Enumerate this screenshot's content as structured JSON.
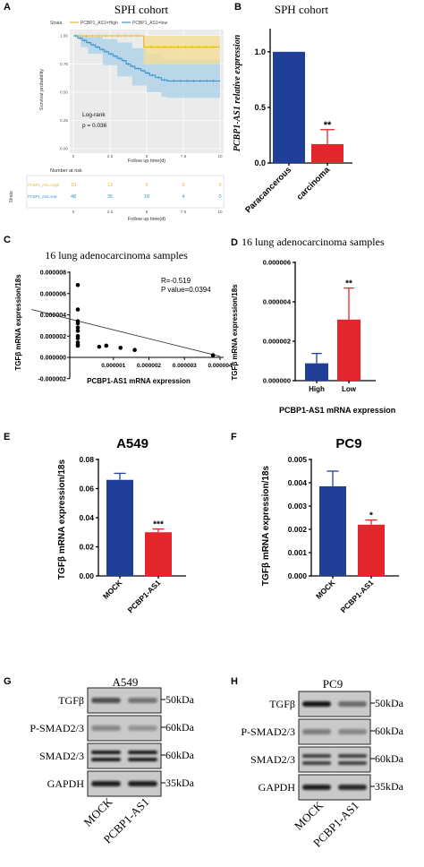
{
  "panels": {
    "A": {
      "letter": "A",
      "title": "SPH cohort",
      "legend_label": "Strata",
      "legend_high": "PCBP1_AS1=High",
      "legend_low": "PCBP1_AS1=low",
      "ylabel": "Survival probability",
      "xlabel": "Follow up time(d)",
      "logrank": "Log-rank",
      "pvalue": "p = 0.036",
      "risk_title": "Number at risk",
      "risk_xlabel": "Follow up time(d)",
      "risk_strata_label": "Strata",
      "risk_row_high": "PCBP1_AS1=High",
      "risk_row_low": "PCBP1_AS1=low",
      "colors": {
        "high": "#e8b42c",
        "low": "#3e92cc",
        "high_band": "#f5dc91",
        "low_band": "#a9d0ea"
      }
    },
    "B": {
      "letter": "B",
      "title": "SPH cohort",
      "ylabel": "PCBP1-AS1 relative expression",
      "sig": "**",
      "colors": {
        "bar1": "#1f3f99",
        "bar2": "#e3262b"
      }
    },
    "C": {
      "letter": "C",
      "title": "16 lung adenocarcinoma samples",
      "ylabel": "TGFβ mRNA expression/18s",
      "xlabel": "PCBP1-AS1 mRNA expression",
      "r_text": "R=-0.519",
      "p_text": "P value=0.0394"
    },
    "D": {
      "letter": "D",
      "title": "16 lung adenocarcinoma samples",
      "ylabel": "TGFβ mRNA expression/18s",
      "xlabel": "PCBP1-AS1 mRNA expression",
      "sig": "**"
    },
    "E": {
      "letter": "E",
      "title": "A549",
      "ylabel": "TGFβ mRNA expression/18s",
      "sig": "***"
    },
    "F": {
      "letter": "F",
      "title": "PC9",
      "ylabel": "TGFβ mRNA expression/18s",
      "sig": "*"
    },
    "G": {
      "letter": "G",
      "title": "A549",
      "rows": [
        {
          "label": "TGFβ",
          "kda": "50kDa"
        },
        {
          "label": "P-SMAD2/3",
          "kda": "60kDa"
        },
        {
          "label": "SMAD2/3",
          "kda": "60kDa"
        },
        {
          "label": "GAPDH",
          "kda": "35kDa"
        }
      ],
      "lanes": [
        "MOCK",
        "PCBP1-AS1"
      ]
    },
    "H": {
      "letter": "H",
      "title": "PC9",
      "rows": [
        {
          "label": "TGFβ",
          "kda": "50kDa"
        },
        {
          "label": "P-SMAD2/3",
          "kda": "60kDa"
        },
        {
          "label": "SMAD2/3",
          "kda": "60kDa"
        },
        {
          "label": "GAPDH",
          "kda": "35kDa"
        }
      ],
      "lanes": [
        "MOCK",
        "PCBP1-AS1"
      ]
    }
  },
  "chart_data": [
    {
      "id": "A",
      "type": "line",
      "title": "SPH cohort",
      "xlabel": "Follow up time(d)",
      "ylabel": "Survival probability",
      "xlim": [
        0,
        10
      ],
      "ylim": [
        0,
        1
      ],
      "xticks": [
        0,
        2.5,
        5,
        7.5,
        10
      ],
      "xtick_labels": [
        "0",
        "2.5",
        "5",
        "7.5",
        "10"
      ],
      "yticks": [
        0,
        0.25,
        0.5,
        0.75,
        1
      ],
      "ytick_labels": [
        "0.00",
        "0.25",
        "0.50",
        "0.75",
        "1.00"
      ],
      "series": [
        {
          "name": "PCBP1_AS1=High",
          "steps": [
            [
              0,
              1.0
            ],
            [
              4.8,
              0.9
            ],
            [
              10,
              0.9
            ]
          ],
          "ci_low": [
            [
              0,
              1.0
            ],
            [
              4.8,
              0.75
            ],
            [
              10,
              0.75
            ]
          ],
          "ci_high": [
            [
              0,
              1.0
            ],
            [
              4.8,
              1.0
            ],
            [
              10,
              1.0
            ]
          ]
        },
        {
          "name": "PCBP1_AS1=low",
          "steps": [
            [
              0,
              1.0
            ],
            [
              0.3,
              0.98
            ],
            [
              0.6,
              0.96
            ],
            [
              0.9,
              0.94
            ],
            [
              1.2,
              0.92
            ],
            [
              1.5,
              0.9
            ],
            [
              1.8,
              0.88
            ],
            [
              2.1,
              0.86
            ],
            [
              2.4,
              0.84
            ],
            [
              2.7,
              0.82
            ],
            [
              3.0,
              0.8
            ],
            [
              3.3,
              0.78
            ],
            [
              3.6,
              0.75
            ],
            [
              3.9,
              0.73
            ],
            [
              4.2,
              0.71
            ],
            [
              4.6,
              0.69
            ],
            [
              4.9,
              0.67
            ],
            [
              5.2,
              0.65
            ],
            [
              5.6,
              0.63
            ],
            [
              6.0,
              0.61
            ],
            [
              6.4,
              0.6
            ],
            [
              10,
              0.6
            ]
          ],
          "ci_low": [
            [
              0,
              1.0
            ],
            [
              0.5,
              0.9
            ],
            [
              1,
              0.84
            ],
            [
              2,
              0.74
            ],
            [
              3,
              0.64
            ],
            [
              4,
              0.56
            ],
            [
              5,
              0.5
            ],
            [
              6,
              0.46
            ],
            [
              6.4,
              0.45
            ],
            [
              10,
              0.45
            ]
          ],
          "ci_high": [
            [
              0,
              1.0
            ],
            [
              1,
              0.99
            ],
            [
              2,
              0.97
            ],
            [
              3,
              0.94
            ],
            [
              4,
              0.89
            ],
            [
              5,
              0.84
            ],
            [
              6,
              0.8
            ],
            [
              6.4,
              0.79
            ],
            [
              10,
              0.79
            ]
          ]
        }
      ],
      "legend": "top"
    },
    {
      "id": "A-risk",
      "type": "table",
      "title": "Number at risk",
      "xlabel": "Follow up time(d)",
      "columns": [
        "0",
        "2.5",
        "5",
        "7.5",
        "10"
      ],
      "rows": [
        {
          "name": "PCBP1_AS1=High",
          "values": [
            "10",
            "12",
            "9",
            "9",
            "0"
          ]
        },
        {
          "name": "PCBP1_AS1=low",
          "values": [
            "48",
            "35",
            "18",
            "4",
            "0"
          ]
        }
      ]
    },
    {
      "id": "B",
      "type": "bar",
      "title": "SPH cohort",
      "categories": [
        "Paracancerous",
        "carcinoma"
      ],
      "values": [
        1.0,
        0.17
      ],
      "errors": [
        0,
        0.13
      ],
      "ylabel": "PCBP1-AS1 relative expression",
      "ylim": [
        0,
        1.2
      ],
      "yticks": [
        0,
        0.5,
        1.0
      ],
      "ytick_labels": [
        "0.0",
        "0.5",
        "1.0"
      ]
    },
    {
      "id": "C",
      "type": "scatter",
      "title": "16 lung adenocarcinoma samples",
      "xlabel": "PCBP1-AS1 mRNA expression",
      "ylabel": "TGFβ mRNA expression/18s",
      "xlim": [
        -1.5e-06,
        4e-06
      ],
      "ylim": [
        -2e-06,
        8e-06
      ],
      "xticks": [
        1e-06,
        2e-06,
        3e-06,
        4e-06
      ],
      "xtick_labels": [
        "0.000001",
        "0.000002",
        "0.000003",
        "0.000004"
      ],
      "yticks": [
        -2e-06,
        0,
        2e-06,
        4e-06,
        6e-06,
        8e-06
      ],
      "ytick_labels": [
        "-0.000002",
        "0.000000",
        "0.000002",
        "0.000004",
        "0.000006",
        "0.000008"
      ],
      "points": [
        [
          0,
          6.8e-06
        ],
        [
          0,
          4.5e-06
        ],
        [
          0,
          3.4e-06
        ],
        [
          0,
          3.2e-06
        ],
        [
          0,
          2.8e-06
        ],
        [
          0,
          2.5e-06
        ],
        [
          0,
          1.8e-06
        ],
        [
          0,
          1.4e-06
        ],
        [
          0,
          1.2e-06
        ],
        [
          0,
          1.1e-06
        ],
        [
          6e-07,
          1e-06
        ],
        [
          8e-07,
          1.1e-06
        ],
        [
          1.2e-06,
          9e-07
        ],
        [
          1.6e-06,
          7e-07
        ],
        [
          3.8e-06,
          2e-07
        ],
        [
          0,
          2e-06
        ]
      ],
      "fit": [
        [
          -1.3e-06,
          4.5e-06
        ],
        [
          4e-06,
          1e-07
        ]
      ]
    },
    {
      "id": "D",
      "type": "bar",
      "title": "16 lung adenocarcinoma samples",
      "categories": [
        "High",
        "Low"
      ],
      "values": [
        8.8e-07,
        3.1e-06
      ],
      "errors": [
        5e-07,
        1.6e-06
      ],
      "xlabel": "PCBP1-AS1 mRNA expression",
      "ylabel": "TGFβ mRNA expression/18s",
      "ylim": [
        0,
        6e-06
      ],
      "yticks": [
        0,
        2e-06,
        4e-06,
        6e-06
      ],
      "ytick_labels": [
        "0.000000",
        "0.000002",
        "0.000004",
        "0.000006"
      ]
    },
    {
      "id": "E",
      "type": "bar",
      "title": "A549",
      "categories": [
        "MOCK",
        "PCBP1-AS1"
      ],
      "values": [
        0.066,
        0.03
      ],
      "errors": [
        0.0045,
        0.0022
      ],
      "ylabel": "TGFβ mRNA expression/18s",
      "ylim": [
        0,
        0.08
      ],
      "yticks": [
        0,
        0.02,
        0.04,
        0.06,
        0.08
      ],
      "ytick_labels": [
        "0.00",
        "0.02",
        "0.04",
        "0.06",
        "0.08"
      ]
    },
    {
      "id": "F",
      "type": "bar",
      "title": "PC9",
      "categories": [
        "MOCK",
        "PCBP1-AS1"
      ],
      "values": [
        0.00385,
        0.0022
      ],
      "errors": [
        0.00065,
        0.0002
      ],
      "ylabel": "TGFβ mRNA expression/18s",
      "ylim": [
        0,
        0.005
      ],
      "yticks": [
        0,
        0.001,
        0.002,
        0.003,
        0.004,
        0.005
      ],
      "ytick_labels": [
        "0.000",
        "0.001",
        "0.002",
        "0.003",
        "0.004",
        "0.005"
      ]
    }
  ]
}
